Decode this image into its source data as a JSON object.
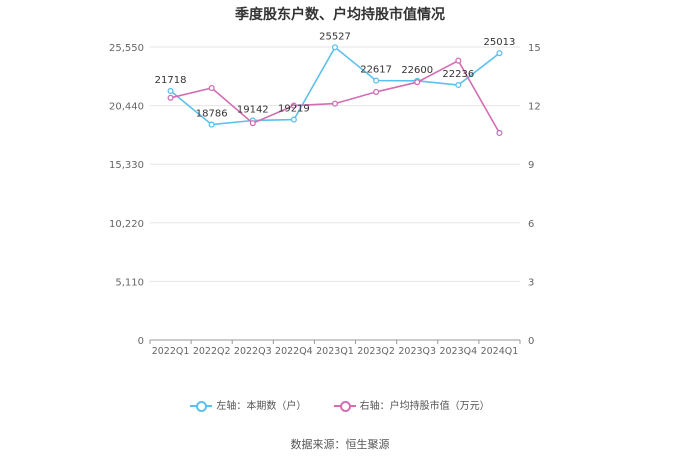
{
  "chart_data": {
    "type": "line",
    "title": "季度股东户数、户均持股市值情况",
    "source": "数据来源：恒生聚源",
    "categories": [
      "2022Q1",
      "2022Q2",
      "2022Q3",
      "2022Q4",
      "2023Q1",
      "2023Q2",
      "2023Q3",
      "2023Q4",
      "2024Q1"
    ],
    "left_axis": {
      "ticks": [
        "0",
        "5,110",
        "10,220",
        "15,330",
        "20,440",
        "25,550"
      ],
      "ylim": [
        0,
        25550
      ]
    },
    "right_axis": {
      "ticks": [
        "0",
        "3",
        "6",
        "9",
        "12",
        "15"
      ],
      "ylim": [
        0,
        15
      ]
    },
    "grid": true,
    "legend_position": "bottom",
    "series": [
      {
        "name": "左轴：本期数（户）",
        "axis": "left",
        "color": "#5bc0eb",
        "values": [
          21718,
          18786,
          19142,
          19219,
          25527,
          22617,
          22600,
          22236,
          25013
        ],
        "labels": [
          "21718",
          "18786",
          "19142",
          "19219",
          "25527",
          "22617",
          "22600",
          "22236",
          "25013"
        ]
      },
      {
        "name": "右轴：户均持股市值（万元）",
        "axis": "right",
        "color": "#d36eb5",
        "values": [
          12.4,
          12.9,
          11.1,
          12.0,
          12.1,
          12.7,
          13.2,
          14.3,
          10.6
        ]
      }
    ]
  }
}
